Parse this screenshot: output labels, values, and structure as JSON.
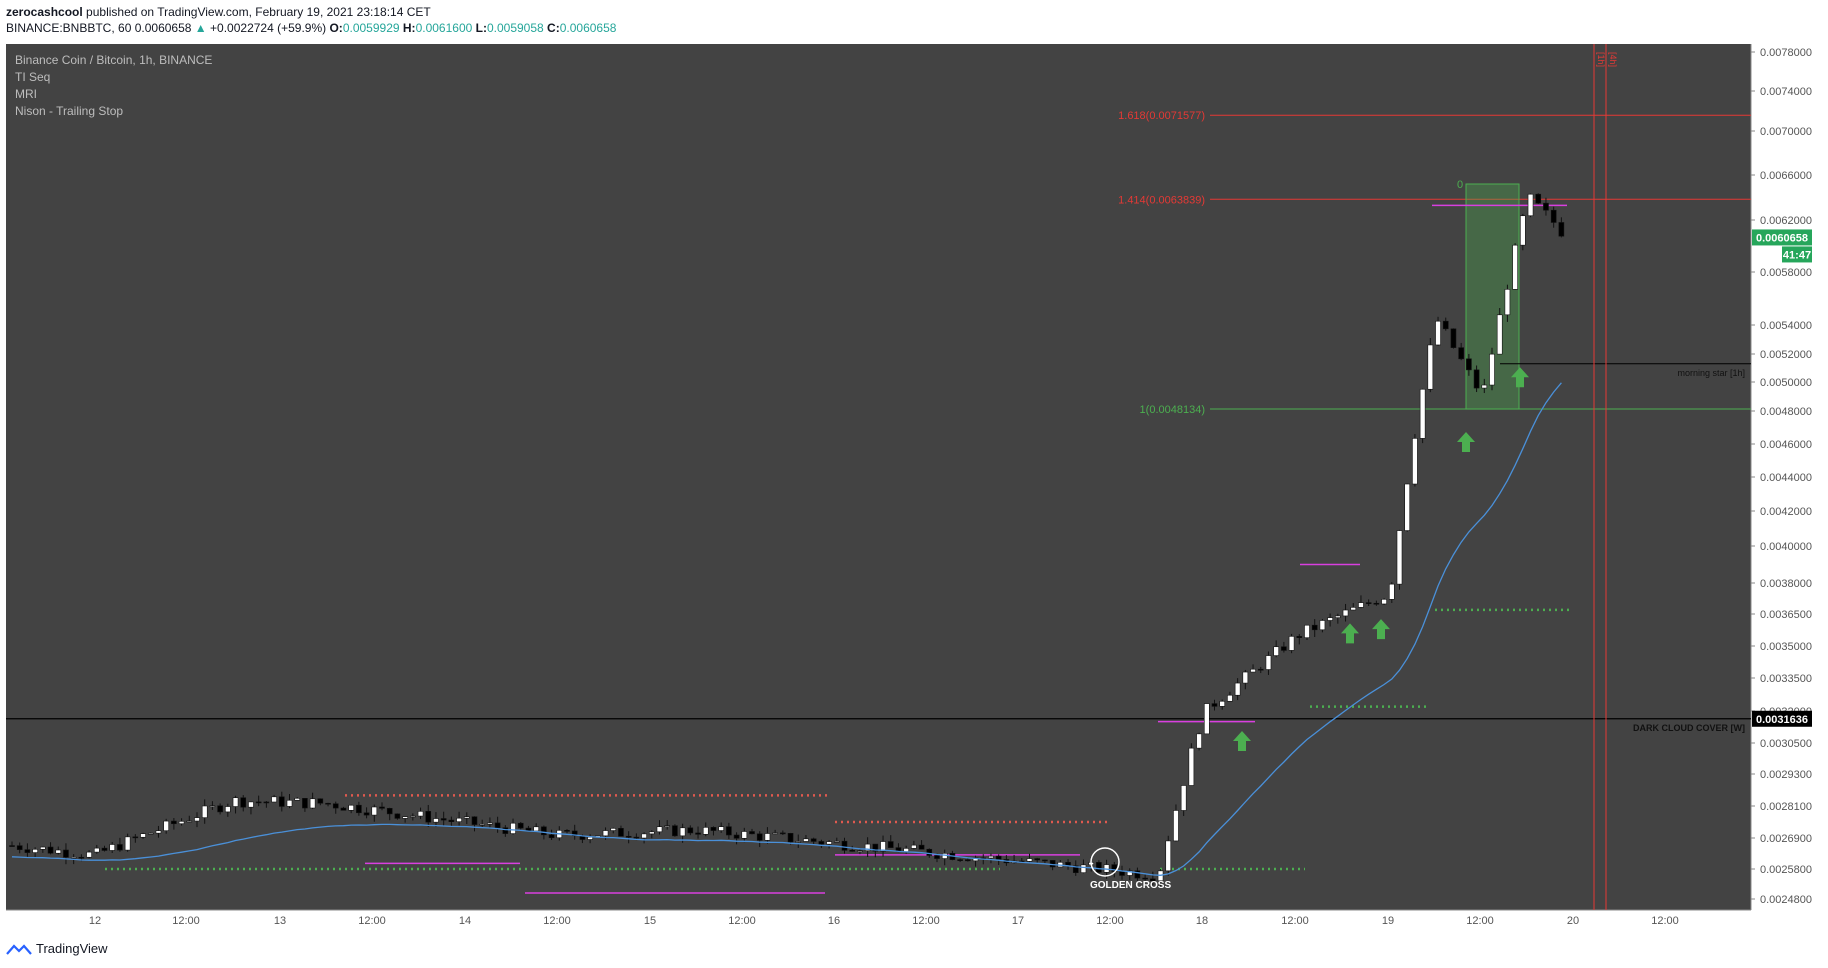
{
  "header": {
    "author": "zerocashcool",
    "published": "published on TradingView.com, February 19, 2021 23:18:14 CET",
    "symbol": "BINANCE:BNBBTC, 60",
    "last": "0.0060658",
    "change_arrow": "▲",
    "change": "+0.0022724 (+59.9%)",
    "o_label": "O:",
    "o": "0.0059929",
    "h_label": "H:",
    "h": "0.0061600",
    "l_label": "L:",
    "l": "0.0059058",
    "c_label": "C:",
    "c": "0.0060658"
  },
  "legend": {
    "title": "Binance Coin / Bitcoin, 1h, BINANCE",
    "studies": [
      "TI Seq",
      "MRI",
      "Nison - Trailing Stop"
    ]
  },
  "footer": {
    "brand": "TradingView",
    "logo_icon": "tradingview-logo-icon"
  },
  "colors": {
    "background": "#434343",
    "up": "#ffffff",
    "down": "#000000",
    "ma": "#4a90d9",
    "fib_red": "#e53935",
    "fib_green": "#4caf50",
    "seq_green": "#4caf50",
    "seq_red": "#e05a4f",
    "magenta": "#d93fe0"
  },
  "chart_data": {
    "type": "candlestick",
    "symbol": "BNBBTC",
    "interval": "1h",
    "ylim": [
      0.00246,
      0.00785
    ],
    "y_ticks": [
      "0.0078000",
      "0.0074000",
      "0.0070000",
      "0.0066000",
      "0.0062000",
      "0.0058000",
      "0.0054000",
      "0.0052000",
      "0.0050000",
      "0.0048000",
      "0.0046000",
      "0.0044000",
      "0.0042000",
      "0.0040000",
      "0.0038000",
      "0.0036500",
      "0.0035000",
      "0.0033500",
      "0.0032000",
      "0.0030500",
      "0.0029300",
      "0.0028100",
      "0.0026900",
      "0.0025800",
      "0.0024800"
    ],
    "x_ticks": [
      "12",
      "12:00",
      "13",
      "12:00",
      "14",
      "12:00",
      "15",
      "12:00",
      "16",
      "12:00",
      "17",
      "12:00",
      "18",
      "12:00",
      "19",
      "12:00",
      "20",
      "12:00"
    ],
    "last_price": {
      "value": "0.0060658",
      "countdown": "41:47"
    },
    "fib_levels": [
      {
        "label": "1.618(0.0071577)",
        "value": 0.0071577,
        "color": "red"
      },
      {
        "label": "1.414(0.0063839)",
        "value": 0.0063839,
        "color": "red"
      },
      {
        "label": "1(0.0048134)",
        "value": 0.0048134,
        "color": "green"
      },
      {
        "label": "0",
        "value": 0.00652,
        "color": "green"
      }
    ],
    "horizontal_lines": [
      {
        "label": "DARK CLOUD COVER [W]",
        "value": 0.0031636,
        "price_label": "0.0031636"
      },
      {
        "label": "morning star [1h]",
        "value": 0.00513
      }
    ],
    "timeframe_markers": [
      "1h",
      "4h"
    ],
    "annotations": [
      {
        "text": "GOLDEN CROSS",
        "x": "17 ~20:00",
        "y": 0.00262
      }
    ],
    "key_points": [
      {
        "time": "12 00:00",
        "price": 0.00263
      },
      {
        "time": "12 18:00",
        "price": 0.00283
      },
      {
        "time": "13 06:00",
        "price": 0.00282
      },
      {
        "time": "14 12:00",
        "price": 0.0027
      },
      {
        "time": "15 06:00",
        "price": 0.00272
      },
      {
        "time": "16 12:00",
        "price": 0.00264
      },
      {
        "time": "17 18:00",
        "price": 0.00256
      },
      {
        "time": "18 00:00",
        "price": 0.0032
      },
      {
        "time": "18 12:00",
        "price": 0.00355
      },
      {
        "time": "19 00:00",
        "price": 0.00375
      },
      {
        "time": "19 06:00",
        "price": 0.00545
      },
      {
        "time": "19 12:00",
        "price": 0.0049
      },
      {
        "time": "19 18:00",
        "price": 0.0064
      },
      {
        "time": "19 23:00",
        "price": 0.0060658
      }
    ]
  }
}
